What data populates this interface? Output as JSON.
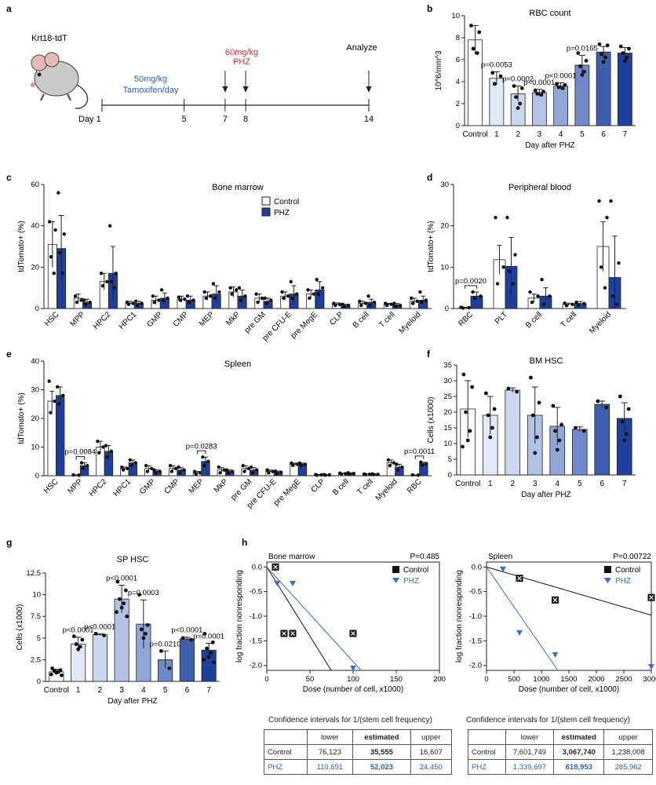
{
  "colors": {
    "control": "#ffffff",
    "phz": "#1f3f9c",
    "edge": "#222222",
    "blue_text": "#2b5fb5",
    "red_text": "#d62b2b"
  },
  "panel_labels": [
    "a",
    "b",
    "c",
    "d",
    "e",
    "f",
    "g",
    "h"
  ],
  "timeline": {
    "mouse_label": "Krt18-tdT",
    "tam_label": [
      "50mg/kg",
      "Tamoxifen/day"
    ],
    "phz_label": [
      "60mg/kg",
      "PHZ"
    ],
    "analyze_label": "Analyze",
    "day_prefix": "Day 1",
    "days": [
      {
        "value": 5,
        "label": "5"
      },
      {
        "value": 7,
        "label": "7"
      },
      {
        "value": 8,
        "label": "8"
      },
      {
        "value": 14,
        "label": "14"
      }
    ],
    "arrow_days": [
      7,
      8,
      14
    ]
  },
  "chart_data": [
    {
      "id": "b",
      "type": "bar",
      "title": "RBC count",
      "xlabel": "Day after PHZ",
      "ylabel": "10^6/mm^3",
      "ylim": [
        0,
        10
      ],
      "yticks": [
        0,
        2,
        4,
        6,
        8,
        10
      ],
      "categories": [
        "Control",
        "1",
        "2",
        "3",
        "4",
        "5",
        "6",
        "7"
      ],
      "values": [
        7.8,
        4.3,
        2.9,
        3.0,
        3.6,
        5.5,
        6.7,
        6.6
      ],
      "errors": [
        1.3,
        0.6,
        0.7,
        0.3,
        0.3,
        0.9,
        0.5,
        0.5
      ],
      "shades": [
        "#ffffff",
        "#e2e9f6",
        "#cbd7ef",
        "#b1c2e6",
        "#8fa6d8",
        "#6e8acb",
        "#3e5fb0",
        "#1f3f9c"
      ],
      "points": [
        [
          9.1,
          8.5,
          7.0,
          6.6
        ],
        [
          4.8,
          4.5,
          3.8
        ],
        [
          3.6,
          3.4,
          2.6,
          2.0,
          1.6
        ],
        [
          3.2,
          3.1,
          2.9,
          2.8
        ],
        [
          3.8,
          3.7,
          3.5,
          3.4
        ],
        [
          6.6,
          5.9,
          5.4,
          4.9,
          4.6
        ],
        [
          7.4,
          7.3,
          6.5,
          6.2,
          5.8
        ],
        [
          7.2,
          7.0,
          6.6,
          6.2,
          5.9
        ]
      ],
      "annotations": [
        "",
        "p=0.0053",
        "p=0.0002",
        "p<0.0001",
        "p<0.0001",
        "p=0.0165",
        "",
        ""
      ]
    },
    {
      "id": "c",
      "type": "bar",
      "title": "Bone marrow",
      "ylabel": "tdTomato+ (%)",
      "ylim": [
        0,
        60
      ],
      "yticks": [
        0,
        20,
        40,
        60
      ],
      "legend": [
        "Control",
        "PHZ"
      ],
      "categories": [
        "HSC",
        "MPP",
        "HPC2",
        "HPC1",
        "GMP",
        "CMP",
        "MEP",
        "MkP",
        "pre GM",
        "pre CFU-E",
        "pre MegE",
        "CLP",
        "B cell",
        "T cell",
        "Myeloid"
      ],
      "series": [
        {
          "name": "Control",
          "values": [
            31,
            5,
            13,
            2.5,
            4,
            4.5,
            6,
            8,
            5,
            6,
            7,
            2,
            2.5,
            2,
            3.5
          ],
          "errors": [
            11,
            2,
            4,
            1,
            2,
            1.5,
            2,
            2.5,
            2,
            2,
            2,
            0.7,
            1,
            0.5,
            1.5
          ]
        },
        {
          "name": "PHZ",
          "values": [
            29,
            3,
            17,
            2.5,
            5,
            4,
            7,
            6,
            3.5,
            7,
            9,
            1.5,
            3,
            1.7,
            4
          ],
          "errors": [
            16,
            1.5,
            13,
            1,
            2.5,
            2,
            4,
            3,
            1.5,
            4,
            4,
            0.5,
            1.5,
            0.7,
            2
          ]
        }
      ],
      "points": {
        "Control": [
          [
            42,
            38,
            25,
            17
          ],
          [
            6,
            4,
            3
          ],
          [
            17,
            13,
            11
          ],
          [
            3,
            2.5,
            2
          ],
          [
            6,
            4,
            3
          ],
          [
            5.5,
            4.5,
            4
          ],
          [
            8,
            6,
            5
          ],
          [
            10,
            9,
            7
          ],
          [
            7,
            5,
            3
          ],
          [
            8,
            6,
            5
          ],
          [
            9,
            7,
            5
          ],
          [
            2.5,
            2,
            1.5
          ],
          [
            3.5,
            2.5,
            1.5
          ],
          [
            2.5,
            2,
            1.5
          ],
          [
            5,
            3.5,
            2.5
          ]
        ],
        "PHZ": [
          [
            56,
            36,
            27,
            17
          ],
          [
            4,
            3,
            2
          ],
          [
            40,
            17,
            13,
            10
          ],
          [
            3.5,
            2.5,
            1.5
          ],
          [
            9,
            5,
            4
          ],
          [
            6,
            4,
            3
          ],
          [
            12,
            8,
            5
          ],
          [
            10,
            6,
            4
          ],
          [
            5,
            4,
            2.5
          ],
          [
            13,
            7,
            5
          ],
          [
            14,
            10,
            7
          ],
          [
            2,
            1.5,
            1
          ],
          [
            6,
            3,
            1.5
          ],
          [
            2.5,
            1.5,
            1
          ],
          [
            8,
            4,
            3
          ]
        ]
      }
    },
    {
      "id": "d",
      "type": "bar",
      "title": "Peripheral blood",
      "ylabel": "tdTomato+ (%)",
      "ylim": [
        0,
        30
      ],
      "yticks": [
        0,
        10,
        20,
        30
      ],
      "categories": [
        "RBC",
        "PLT",
        "B cell",
        "T cell",
        "Myeloid"
      ],
      "series": [
        {
          "name": "Control",
          "values": [
            0.2,
            11.8,
            2.5,
            1.0,
            15.0
          ],
          "errors": [
            0.1,
            3.5,
            1.0,
            0.3,
            6.0
          ]
        },
        {
          "name": "PHZ",
          "values": [
            3.0,
            10.2,
            3.0,
            1.2,
            7.5
          ],
          "errors": [
            1.0,
            7.0,
            2.0,
            0.5,
            10.0
          ]
        }
      ],
      "points": {
        "Control": [
          [
            0.3,
            0.2,
            0.1
          ],
          [
            22,
            10,
            6
          ],
          [
            4,
            3,
            1.5
          ],
          [
            1.3,
            1.0,
            0.7
          ],
          [
            26,
            22,
            10,
            5
          ]
        ],
        "PHZ": [
          [
            4,
            3,
            2.5
          ],
          [
            22,
            13,
            9,
            6
          ],
          [
            7,
            3,
            1
          ],
          [
            1.5,
            1.2,
            0.9
          ],
          [
            26,
            11,
            3,
            1
          ]
        ]
      },
      "annotation": {
        "text": "p=0.0020",
        "category": "RBC"
      }
    },
    {
      "id": "e",
      "type": "bar",
      "title": "Spleen",
      "ylabel": "tdTomato+ (%)",
      "ylim": [
        0,
        40
      ],
      "yticks": [
        0,
        10,
        20,
        30,
        40
      ],
      "categories": [
        "HSC",
        "MPP",
        "HPC2",
        "HPC1",
        "GMP",
        "CMP",
        "MEP",
        "MkP",
        "pre GM",
        "pre CFU-E",
        "pre MegE",
        "CLP",
        "B cell",
        "T cell",
        "Myeloid",
        "RBC"
      ],
      "series": [
        {
          "name": "Control",
          "values": [
            26,
            0.2,
            10,
            2.5,
            2.5,
            2.5,
            1,
            2,
            2.5,
            1.5,
            4,
            0.3,
            0.7,
            0.5,
            4.5,
            0.2
          ],
          "errors": [
            3.5,
            0.1,
            2,
            0.5,
            1,
            1,
            0.5,
            0.8,
            1,
            0.5,
            0.4,
            0.1,
            0.2,
            0.1,
            1,
            0.1
          ]
        },
        {
          "name": "PHZ",
          "values": [
            28,
            3.5,
            8.5,
            4.5,
            1.5,
            2,
            5,
            1.5,
            2,
            1.2,
            4,
            0.3,
            0.8,
            0.5,
            3,
            4.2
          ],
          "errors": [
            3,
            1,
            2,
            1,
            0.5,
            0.8,
            1.5,
            0.5,
            0.8,
            0.4,
            0.4,
            0.1,
            0.2,
            0.1,
            1,
            0.5
          ]
        }
      ],
      "points": {
        "Control": [
          [
            33,
            26,
            22
          ],
          [
            0.3,
            0.2
          ],
          [
            12,
            10,
            8
          ],
          [
            3,
            2.5,
            2
          ],
          [
            3.5,
            2.5,
            1.5
          ],
          [
            3.5,
            2.5,
            1.5
          ],
          [
            1.5,
            1,
            0.5
          ],
          [
            3,
            2,
            1
          ],
          [
            3.5,
            2.5,
            1.5
          ],
          [
            2,
            1.5,
            1
          ],
          [
            4.4,
            4,
            3.6
          ],
          [
            0.4,
            0.3,
            0.2
          ],
          [
            0.9,
            0.7,
            0.5
          ],
          [
            0.6,
            0.5,
            0.4
          ],
          [
            5.5,
            4.5,
            3.5
          ],
          [
            0.3,
            0.2
          ]
        ],
        "PHZ": [
          [
            31,
            28,
            25
          ],
          [
            4.5,
            3.5,
            2.5
          ],
          [
            10.5,
            8.5,
            6.5
          ],
          [
            5.5,
            4.5,
            3.5
          ],
          [
            2,
            1.5,
            1
          ],
          [
            3,
            2,
            1
          ],
          [
            6.5,
            5,
            3.5
          ],
          [
            2,
            1.5,
            1
          ],
          [
            3,
            2,
            1
          ],
          [
            1.6,
            1.2,
            0.8
          ],
          [
            4.4,
            4,
            3.6
          ],
          [
            0.4,
            0.3,
            0.2
          ],
          [
            1,
            0.8,
            0.6
          ],
          [
            0.6,
            0.5,
            0.4
          ],
          [
            4,
            3,
            2
          ],
          [
            4.7,
            4.2,
            3.7
          ]
        ]
      },
      "annotations": [
        {
          "text": "p=0.0084",
          "category": "MPP"
        },
        {
          "text": "p=0.0283",
          "category": "MEP"
        },
        {
          "text": "p=0.0011",
          "category": "RBC"
        }
      ]
    },
    {
      "id": "f",
      "type": "bar",
      "title": "BM HSC",
      "xlabel": "Day after PHZ",
      "ylabel": "Cells (x1000)",
      "ylim": [
        0,
        35
      ],
      "yticks": [
        0,
        5,
        10,
        15,
        20,
        25,
        30,
        35
      ],
      "categories": [
        "Control",
        "1",
        "2",
        "3",
        "4",
        "5",
        "6",
        "7"
      ],
      "values": [
        21,
        19,
        27,
        19,
        15.5,
        14.5,
        22.5,
        18
      ],
      "errors": [
        9,
        6,
        0.7,
        9,
        6,
        0.8,
        1,
        5
      ],
      "shades": [
        "#ffffff",
        "#e2e9f6",
        "#cbd7ef",
        "#b1c2e6",
        "#8fa6d8",
        "#6e8acb",
        "#3e5fb0",
        "#1f3f9c"
      ],
      "points": [
        [
          32,
          28,
          20,
          14,
          11,
          9
        ],
        [
          26,
          21,
          19,
          15,
          12
        ],
        [
          27.5,
          26.5
        ],
        [
          31,
          23,
          19,
          12,
          7
        ],
        [
          22,
          16,
          14,
          11,
          8
        ],
        [
          15,
          14
        ],
        [
          23.5,
          21.5
        ],
        [
          25,
          21,
          17,
          13,
          11
        ]
      ]
    },
    {
      "id": "g",
      "type": "bar",
      "title": "SP HSC",
      "xlabel": "Day after PHZ",
      "ylabel": "Cells (x1000)",
      "ylim": [
        0,
        12.5
      ],
      "yticks": [
        0,
        2.5,
        5,
        7.5,
        10,
        12.5
      ],
      "categories": [
        "Control",
        "1",
        "2",
        "3",
        "4",
        "5",
        "6",
        "7"
      ],
      "values": [
        1.1,
        4.3,
        5.4,
        9.5,
        6.6,
        2.5,
        4.9,
        3.6
      ],
      "errors": [
        0.3,
        0.8,
        0.1,
        1.6,
        2.8,
        1.0,
        0.2,
        0.8
      ],
      "shades": [
        "#ffffff",
        "#e2e9f6",
        "#cbd7ef",
        "#b1c2e6",
        "#8fa6d8",
        "#6e8acb",
        "#3e5fb0",
        "#1f3f9c"
      ],
      "points": [
        [
          1.5,
          1.3,
          1.2,
          1.1,
          1.0,
          0.8,
          0.7
        ],
        [
          5.2,
          4.8,
          4.3,
          4.0,
          3.7
        ],
        [
          5.5,
          5.3
        ],
        [
          11.5,
          10.5,
          9.5,
          9.0,
          8.5,
          8.0,
          7.5
        ],
        [
          10,
          6.5,
          6,
          5.5,
          5
        ],
        [
          3.5,
          1.5
        ],
        [
          5,
          4.8
        ],
        [
          5.5,
          4.5,
          3.8,
          3.3,
          2.8,
          2.5,
          2.2
        ]
      ],
      "annotations": [
        "",
        "p<0.0001",
        "p<0.0001",
        "p<0.0001",
        "p=0.0003",
        "p=0.0210",
        "p<0.0001",
        "p=0.0001"
      ]
    },
    {
      "id": "h1",
      "type": "scatter",
      "title": "Bone marrow",
      "pvalue": "P=0.485",
      "xlabel": "Dose (number of cell, x1000)",
      "ylabel": "log fraction nonresponding",
      "xlim": [
        0,
        200
      ],
      "ylim": [
        -2.1,
        0.1
      ],
      "xticks": [
        0,
        50,
        100,
        150,
        200
      ],
      "yticks": [
        0,
        -0.5,
        -1,
        -1.5,
        -2
      ],
      "legend": [
        "Control",
        "PHZ"
      ],
      "series": [
        {
          "name": "Control",
          "x": [
            10,
            20,
            30,
            100
          ],
          "y": [
            0,
            -1.35,
            -1.35,
            -1.35
          ],
          "slope": -0.02812
        },
        {
          "name": "PHZ",
          "x": [
            12,
            30,
            100
          ],
          "y": [
            -0.33,
            -0.33,
            -2.05
          ],
          "slope": -0.01922
        }
      ]
    },
    {
      "id": "h2",
      "type": "scatter",
      "title": "Spleen",
      "pvalue": "P=0.00722",
      "xlabel": "Dose (number of cell, x1000)",
      "ylabel": "log fraction nonresponding",
      "xlim": [
        0,
        3000
      ],
      "ylim": [
        -2.1,
        0.1
      ],
      "xticks": [
        0,
        500,
        1000,
        1500,
        2000,
        2500,
        3000
      ],
      "yticks": [
        0,
        -0.5,
        -1,
        -1.5,
        -2
      ],
      "legend": [
        "Control",
        "PHZ"
      ],
      "series": [
        {
          "name": "Control",
          "x": [
            600,
            1250,
            3000
          ],
          "y": [
            -0.23,
            -0.67,
            -0.62
          ],
          "slope": -0.000326
        },
        {
          "name": "PHZ",
          "x": [
            300,
            600,
            1250,
            3000
          ],
          "y": [
            -0.04,
            -1.33,
            -1.78,
            -2.02
          ],
          "slope": -0.001616
        }
      ]
    }
  ],
  "ci_tables": [
    {
      "caption": "Confidence intervals for 1/(stem cell frequency)",
      "headers": [
        "",
        "lower",
        "estimated",
        "upper"
      ],
      "rows": [
        [
          "Control",
          "76,123",
          "35,555",
          "16,607"
        ],
        [
          "PHZ",
          "110,691",
          "52,023",
          "24,450"
        ]
      ]
    },
    {
      "caption": "Confidence intervals for 1/(stem cell frequency)",
      "headers": [
        "",
        "lower",
        "estimated",
        "upper"
      ],
      "rows": [
        [
          "Control",
          "7,601,749",
          "3,067,740",
          "1,238,008"
        ],
        [
          "PHZ",
          "1,339,697",
          "618,953",
          "285,962"
        ]
      ]
    }
  ]
}
